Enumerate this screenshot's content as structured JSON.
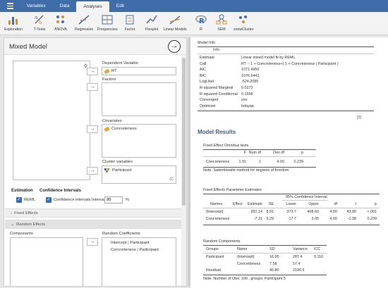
{
  "menu": {
    "tabs": [
      "Variables",
      "Data",
      "Analyses",
      "Edit"
    ],
    "active": "Analyses"
  },
  "ribbon": {
    "items": [
      "Exploration",
      "T-Tests",
      "ANOVA",
      "Regression",
      "Frequencies",
      "Factor",
      "Flexplot",
      "Linear Models",
      "R",
      "SEM",
      "snowCluster"
    ]
  },
  "panel": {
    "title": "Mixed Model",
    "dependent_label": "Dependent Variable",
    "dependent_value": "RT",
    "factors_label": "Factors",
    "covariates_label": "Covariates",
    "covariates": [
      "Concreteness"
    ],
    "cluster_label": "Cluster variables",
    "cluster": [
      "Participant"
    ],
    "estimation_head": "Estimation",
    "ci_head": "Confidence Intervals",
    "reml_label": "REML",
    "ci_label": "Confidence intervals",
    "interval_label": "Interval",
    "interval_value": "95",
    "interval_unit": "%",
    "fixed_effects": "Fixed Effects",
    "random_effects": "Random Effects",
    "components_label": "Components",
    "random_coeff_label": "Random Coefficients",
    "random_coeff": [
      "Intercept | Participant",
      "Concreteness | Participant"
    ]
  },
  "results": {
    "model_info_title": "Model Info",
    "info_header": "Info",
    "info_rows": [
      [
        "Estimate",
        "Linear mixed model fit by REML"
      ],
      [
        "Call",
        "RT ~ 1 + Concreteness+( 1 + Concreteness | Participant )"
      ],
      [
        "AIC",
        "1071.4950"
      ],
      [
        "BIC",
        "1076.0441"
      ],
      [
        "LogLikel.",
        "-524.2085"
      ],
      [
        "R-squared Marginal",
        "0.0273"
      ],
      [
        "R-squared Conditional",
        "0.1658"
      ],
      [
        "Converged",
        "yes"
      ],
      [
        "Optimizer",
        "bobyqa"
      ]
    ],
    "footnote_marker": "[3]",
    "model_results_title": "Model Results",
    "omnibus": {
      "title": "Fixed Effect Omnibus tests",
      "headers": [
        "F",
        "Num df",
        "Den df",
        "p"
      ],
      "row_label": "Concreteness",
      "row": [
        "1.91",
        "1",
        "4.00",
        "0.239"
      ],
      "note": "Note. Satterthwaite method for degrees of freedom"
    },
    "params": {
      "title": "Fixed Effects Parameter Estimates",
      "ci_header": "95% Confidence Interval",
      "headers": [
        "Names",
        "Effect",
        "Estimate",
        "SE",
        "Lower",
        "Upper",
        "df",
        "t",
        "p"
      ],
      "rows": [
        [
          "(Intercept)",
          "(Intercept)",
          "391.14",
          "8.91",
          "373.7",
          "408.60",
          "4.00",
          "43.90",
          "<.001"
        ],
        [
          "Concreteness",
          "Concreteness",
          "-7.31",
          "5.29",
          "-17.7",
          "3.05",
          "4.00",
          "-1.38",
          "0.239"
        ]
      ]
    },
    "random": {
      "title": "Random Components",
      "headers": [
        "Groups",
        "Name",
        "SD",
        "Variance",
        "ICC"
      ],
      "rows": [
        [
          "Participant",
          "(Intercept)",
          "16.95",
          "287.4",
          "0.116"
        ],
        [
          "",
          "Concreteness",
          "7.58",
          "57.4",
          ""
        ],
        [
          "Residual",
          "",
          "46.80",
          "2190.6",
          ""
        ]
      ],
      "note": "Note. Number of Obs: 100 , groups: Participant 5"
    }
  }
}
